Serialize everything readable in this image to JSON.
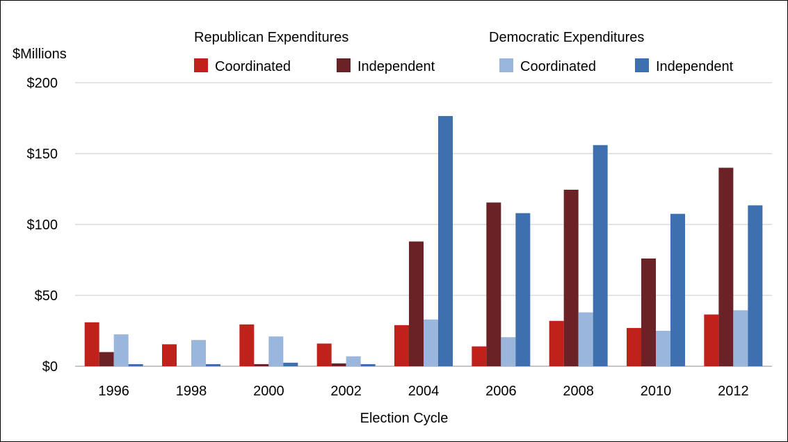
{
  "chart_data": {
    "type": "bar",
    "ylabel": "$Millions",
    "xlabel": "Election Cycle",
    "ylim": [
      0,
      200
    ],
    "yticks": [
      0,
      50,
      100,
      150,
      200
    ],
    "ytick_labels": [
      "$0",
      "$50",
      "$100",
      "$150",
      "$200"
    ],
    "grid": true,
    "legend_placement": "top",
    "legend_groups": [
      {
        "title": "Republican Expenditures",
        "series_indices": [
          0,
          1
        ]
      },
      {
        "title": "Democratic Expenditures",
        "series_indices": [
          2,
          3
        ]
      }
    ],
    "categories": [
      "1996",
      "1998",
      "2000",
      "2002",
      "2004",
      "2006",
      "2008",
      "2010",
      "2012"
    ],
    "series": [
      {
        "name": "Coordinated",
        "color": "#c0211b",
        "values": [
          31,
          15.5,
          29.5,
          16,
          29,
          14,
          32,
          27,
          36.5
        ]
      },
      {
        "name": "Independent",
        "color": "#6b2226",
        "values": [
          10,
          0,
          1.5,
          2,
          88,
          115.5,
          124.5,
          76,
          140
        ]
      },
      {
        "name": "Coordinated",
        "color": "#9ab6dc",
        "values": [
          22.5,
          18.5,
          21,
          7,
          33,
          20.5,
          38,
          25,
          39.5
        ]
      },
      {
        "name": "Independent",
        "color": "#3e6faf",
        "values": [
          1.5,
          1.5,
          2.5,
          1.5,
          176.5,
          108,
          156,
          107.5,
          113.5
        ]
      }
    ]
  }
}
